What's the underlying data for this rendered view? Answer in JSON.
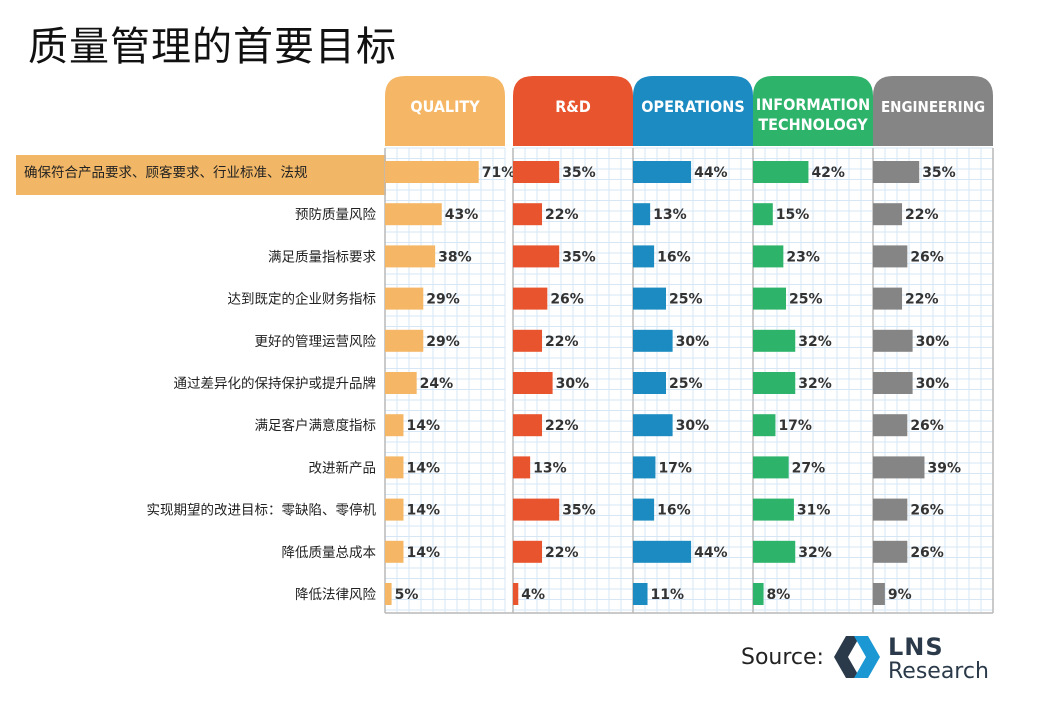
{
  "title": "质量管理的首要目标",
  "source_label": "Source:",
  "logo": {
    "line1": "LNS",
    "line2": "Research"
  },
  "colors": {
    "quality": "#f5b766",
    "rd": "#e8542d",
    "operations": "#1c8bc2",
    "it": "#2eb36b",
    "engineering": "#858585",
    "highlight": "#f2b766"
  },
  "chart_data": {
    "type": "bar",
    "orientation": "horizontal",
    "grid": true,
    "xlim": [
      0,
      100
    ],
    "categories": [
      "确保符合产品要求、顾客要求、行业标准、法规",
      "预防质量风险",
      "满足质量指标要求",
      "达到既定的企业财务指标",
      "更好的管理运营风险",
      "通过差异化的保持保护或提升品牌",
      "满足客户满意度指标",
      "改进新产品",
      "实现期望的改进目标：零缺陷、零停机",
      "降低质量总成本",
      "降低法律风险"
    ],
    "series": [
      {
        "name": "QUALITY",
        "color": "#f5b766",
        "values": [
          71,
          43,
          38,
          29,
          29,
          24,
          14,
          14,
          14,
          14,
          5
        ]
      },
      {
        "name": "R&D",
        "color": "#e8542d",
        "values": [
          35,
          22,
          35,
          26,
          22,
          30,
          22,
          13,
          35,
          22,
          4
        ]
      },
      {
        "name": "OPERATIONS",
        "color": "#1c8bc2",
        "values": [
          44,
          13,
          16,
          25,
          30,
          25,
          30,
          17,
          16,
          44,
          11
        ]
      },
      {
        "name": "INFORMATION TECHNOLOGY",
        "color": "#2eb36b",
        "values": [
          42,
          15,
          23,
          25,
          32,
          32,
          17,
          27,
          31,
          32,
          8
        ]
      },
      {
        "name": "ENGINEERING",
        "color": "#858585",
        "values": [
          35,
          22,
          26,
          22,
          30,
          30,
          26,
          39,
          26,
          26,
          9
        ]
      }
    ],
    "highlighted_category_index": 0
  }
}
